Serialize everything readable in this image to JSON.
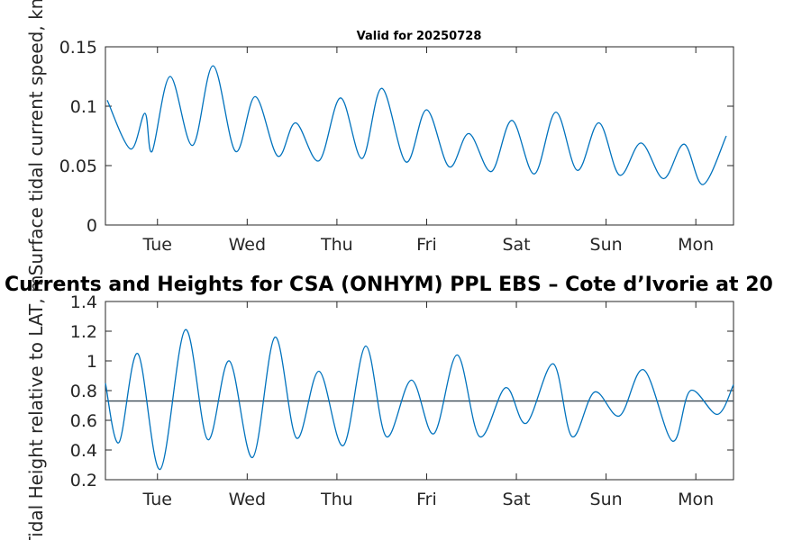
{
  "chart_data": [
    {
      "type": "line",
      "title": "Valid for 20250728",
      "ylabel": "Surface tidal current speed, kn",
      "xlabel": "",
      "x_categories": [
        "Tue",
        "Wed",
        "Thu",
        "Fri",
        "Sat",
        "Sun",
        "Mon"
      ],
      "xlim_days": [
        0,
        7
      ],
      "ylim": [
        0,
        0.15
      ],
      "yticks": [
        "0",
        "0.05",
        "0.1",
        "0.15"
      ],
      "ytick_values": [
        0,
        0.05,
        0.1,
        0.15
      ],
      "grid": false,
      "series": [
        {
          "color": "#0072BD",
          "x": [
            0.02,
            0.28,
            0.44,
            0.52,
            0.72,
            0.97,
            1.2,
            1.45,
            1.67,
            1.92,
            2.12,
            2.38,
            2.62,
            2.86,
            3.08,
            3.35,
            3.58,
            3.83,
            4.05,
            4.3,
            4.53,
            4.78,
            5.02,
            5.26,
            5.5,
            5.73,
            5.97,
            6.22,
            6.45,
            6.66,
            6.92
          ],
          "values": [
            0.105,
            0.064,
            0.094,
            0.062,
            0.125,
            0.067,
            0.134,
            0.062,
            0.108,
            0.058,
            0.086,
            0.054,
            0.107,
            0.056,
            0.115,
            0.053,
            0.097,
            0.049,
            0.077,
            0.045,
            0.088,
            0.043,
            0.095,
            0.046,
            0.086,
            0.042,
            0.069,
            0.039,
            0.068,
            0.034,
            0.075
          ]
        }
      ]
    },
    {
      "type": "line",
      "title": "Currents and Heights for CSA (ONHYM) PPL EBS  – Cote d’Ivorie at 20",
      "ylabel": "Tidal Height relative to LAT, m",
      "xlabel": "",
      "x_categories": [
        "Tue",
        "Wed",
        "Thu",
        "Fri",
        "Sat",
        "Sun",
        "Mon"
      ],
      "xlim_days": [
        0,
        7
      ],
      "ylim": [
        0.2,
        1.4
      ],
      "yticks": [
        "0.2",
        "0.4",
        "0.6",
        "0.8",
        "1",
        "1.2",
        "1.4"
      ],
      "ytick_values": [
        0.2,
        0.4,
        0.6,
        0.8,
        1,
        1.2,
        1.4
      ],
      "grid": false,
      "reference_line": 0.73,
      "series": [
        {
          "color": "#0072BD",
          "x": [
            0,
            0.15,
            0.36,
            0.61,
            0.89,
            1.14,
            1.38,
            1.64,
            1.89,
            2.13,
            2.38,
            2.65,
            2.9,
            3.13,
            3.41,
            3.66,
            3.92,
            4.17,
            4.46,
            4.69,
            4.99,
            5.2,
            5.45,
            5.73,
            6,
            6.32,
            6.52,
            6.82,
            7
          ],
          "values": [
            0.85,
            0.45,
            1.05,
            0.27,
            1.21,
            0.47,
            1.0,
            0.35,
            1.16,
            0.48,
            0.93,
            0.43,
            1.1,
            0.49,
            0.87,
            0.51,
            1.04,
            0.49,
            0.82,
            0.58,
            0.98,
            0.49,
            0.79,
            0.63,
            0.94,
            0.46,
            0.8,
            0.64,
            0.84
          ]
        }
      ]
    }
  ]
}
